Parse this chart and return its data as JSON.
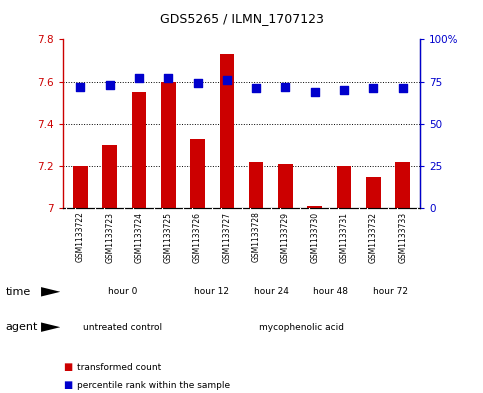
{
  "title": "GDS5265 / ILMN_1707123",
  "samples": [
    "GSM1133722",
    "GSM1133723",
    "GSM1133724",
    "GSM1133725",
    "GSM1133726",
    "GSM1133727",
    "GSM1133728",
    "GSM1133729",
    "GSM1133730",
    "GSM1133731",
    "GSM1133732",
    "GSM1133733"
  ],
  "transformed_count": [
    7.2,
    7.3,
    7.55,
    7.6,
    7.33,
    7.73,
    7.22,
    7.21,
    7.01,
    7.2,
    7.15,
    7.22
  ],
  "percentile_rank": [
    72,
    73,
    77,
    77,
    74,
    76,
    71,
    72,
    69,
    70,
    71,
    71
  ],
  "bar_color": "#cc0000",
  "dot_color": "#0000cc",
  "ylim_left": [
    7.0,
    7.8
  ],
  "ylim_right": [
    0,
    100
  ],
  "yticks_left": [
    7.0,
    7.2,
    7.4,
    7.6,
    7.8
  ],
  "yticks_right": [
    0,
    25,
    50,
    75,
    100
  ],
  "time_groups": [
    {
      "label": "hour 0",
      "start": 0,
      "end": 4,
      "color": "#ccffcc"
    },
    {
      "label": "hour 12",
      "start": 4,
      "end": 6,
      "color": "#aaddaa"
    },
    {
      "label": "hour 24",
      "start": 6,
      "end": 8,
      "color": "#88cc88"
    },
    {
      "label": "hour 48",
      "start": 8,
      "end": 10,
      "color": "#55bb55"
    },
    {
      "label": "hour 72",
      "start": 10,
      "end": 12,
      "color": "#22aa22"
    }
  ],
  "agent_groups": [
    {
      "label": "untreated control",
      "start": 0,
      "end": 4,
      "color": "#ff88ff"
    },
    {
      "label": "mycophenolic acid",
      "start": 4,
      "end": 12,
      "color": "#ffbbff"
    }
  ],
  "legend_bar_label": "transformed count",
  "legend_dot_label": "percentile rank within the sample",
  "xlabel_time": "time",
  "xlabel_agent": "agent",
  "bg_color": "#ffffff",
  "xtick_bg_color": "#cccccc",
  "bar_width": 0.5,
  "dot_size": 30,
  "n_samples": 12
}
